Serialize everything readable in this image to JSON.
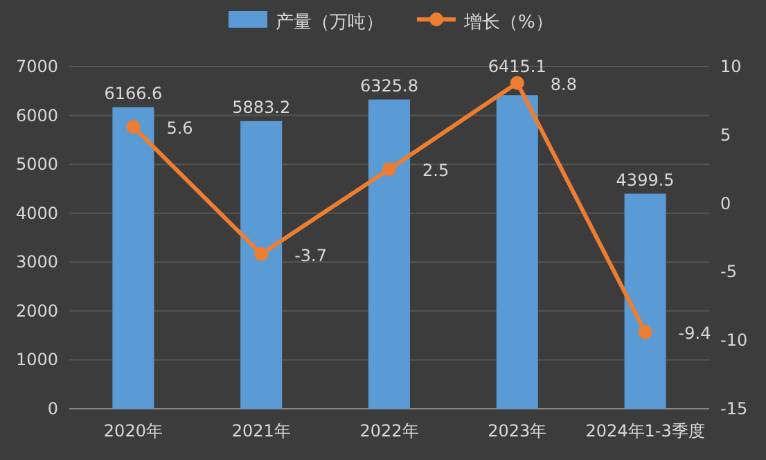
{
  "chart_data": {
    "type": "bar",
    "categories": [
      "2020年",
      "2021年",
      "2022年",
      "2023年",
      "2024年1-3季度"
    ],
    "series": [
      {
        "name": "产量（万吨）",
        "color": "#5b9bd5",
        "values": [
          6166.6,
          5883.2,
          6325.8,
          6415.1,
          4399.5
        ]
      },
      {
        "name": "增长（%）",
        "type": "line",
        "axis": "y2",
        "color": "#ed7d31",
        "values": [
          5.6,
          -3.7,
          2.5,
          8.8,
          -9.4
        ]
      }
    ],
    "ylim": [
      0,
      7000
    ],
    "yticks": [
      0,
      1000,
      2000,
      3000,
      4000,
      5000,
      6000,
      7000
    ],
    "y2lim": [
      -15,
      10
    ],
    "y2ticks": [
      -15,
      -10,
      -5,
      0,
      5,
      10
    ],
    "grid": "y",
    "legend": "top",
    "marker": "circle",
    "data_labels": true
  }
}
